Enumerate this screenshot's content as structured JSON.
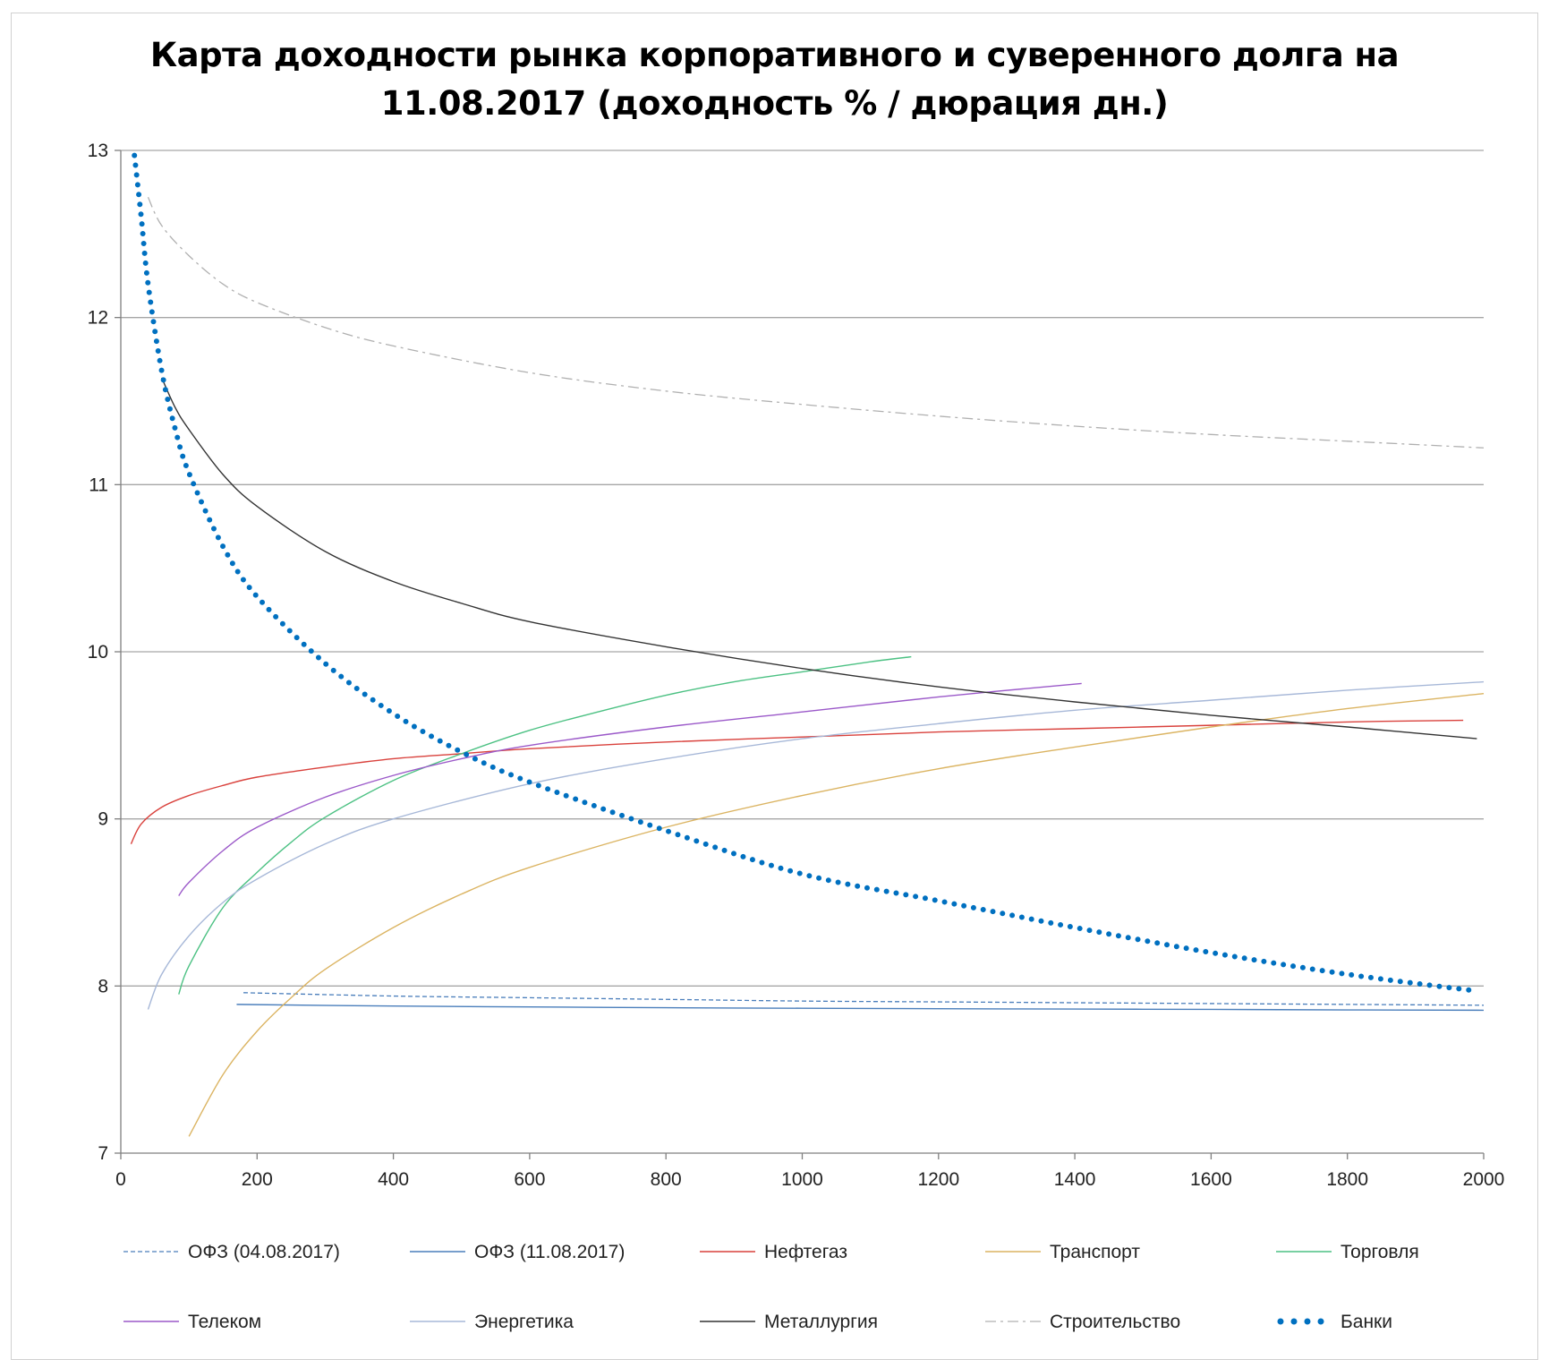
{
  "chart_data": {
    "type": "line",
    "title_lines": [
      "Карта доходности рынка корпоративного и суверенного долга на",
      "11.08.2017 (доходность % / дюрация дн.)"
    ],
    "xlabel": "",
    "ylabel": "",
    "xlim": [
      0,
      2000
    ],
    "ylim": [
      7,
      13
    ],
    "x_ticks": [
      0,
      200,
      400,
      600,
      800,
      1000,
      1200,
      1400,
      1600,
      1800,
      2000
    ],
    "y_ticks": [
      7,
      8,
      9,
      10,
      11,
      12,
      13
    ],
    "grid": "horizontal",
    "legend_position": "bottom",
    "series": [
      {
        "name": "ОФЗ (04.08.2017)",
        "color": "#4a7ebb",
        "style": "dashed",
        "x": [
          180,
          400,
          600,
          800,
          1000,
          1200,
          1400,
          1600,
          1800,
          2000
        ],
        "y": [
          7.96,
          7.94,
          7.93,
          7.92,
          7.91,
          7.905,
          7.9,
          7.895,
          7.89,
          7.885
        ]
      },
      {
        "name": "ОФЗ (11.08.2017)",
        "color": "#4a7ebb",
        "style": "solid",
        "x": [
          170,
          400,
          600,
          800,
          1000,
          1200,
          1400,
          1600,
          1800,
          2000
        ],
        "y": [
          7.89,
          7.88,
          7.875,
          7.87,
          7.867,
          7.864,
          7.862,
          7.86,
          7.857,
          7.855
        ]
      },
      {
        "name": "Нефтегаз",
        "color": "#d9413c",
        "style": "solid",
        "x": [
          15,
          30,
          60,
          100,
          150,
          200,
          300,
          400,
          500,
          600,
          800,
          1000,
          1200,
          1400,
          1600,
          1800,
          1970
        ],
        "y": [
          8.85,
          8.97,
          9.07,
          9.14,
          9.2,
          9.25,
          9.31,
          9.36,
          9.39,
          9.42,
          9.46,
          9.49,
          9.52,
          9.54,
          9.56,
          9.58,
          9.59
        ]
      },
      {
        "name": "Транспорт",
        "color": "#dbb462",
        "style": "solid",
        "x": [
          100,
          150,
          200,
          250,
          300,
          400,
          500,
          600,
          800,
          1000,
          1200,
          1400,
          1600,
          1800,
          2000
        ],
        "y": [
          7.1,
          7.47,
          7.73,
          7.93,
          8.1,
          8.35,
          8.55,
          8.71,
          8.95,
          9.14,
          9.3,
          9.43,
          9.55,
          9.66,
          9.75
        ]
      },
      {
        "name": "Торговля",
        "color": "#4cc183",
        "style": "solid",
        "x": [
          85,
          100,
          150,
          200,
          250,
          300,
          400,
          500,
          600,
          700,
          800,
          900,
          1000,
          1100,
          1160
        ],
        "y": [
          7.95,
          8.12,
          8.47,
          8.68,
          8.86,
          9.01,
          9.23,
          9.39,
          9.53,
          9.64,
          9.74,
          9.82,
          9.88,
          9.94,
          9.97
        ]
      },
      {
        "name": "Телеком",
        "color": "#9b59c9",
        "style": "solid",
        "x": [
          85,
          100,
          150,
          200,
          300,
          400,
          500,
          600,
          800,
          1000,
          1200,
          1410
        ],
        "y": [
          8.54,
          8.62,
          8.81,
          8.95,
          9.13,
          9.26,
          9.36,
          9.44,
          9.55,
          9.64,
          9.73,
          9.81
        ]
      },
      {
        "name": "Энергетика",
        "color": "#a7b8d8",
        "style": "solid",
        "x": [
          40,
          60,
          100,
          150,
          200,
          300,
          400,
          600,
          800,
          1000,
          1200,
          1400,
          1600,
          1800,
          2000
        ],
        "y": [
          7.86,
          8.07,
          8.3,
          8.5,
          8.64,
          8.85,
          9.0,
          9.21,
          9.36,
          9.48,
          9.57,
          9.65,
          9.71,
          9.77,
          9.82
        ]
      },
      {
        "name": "Металлургия",
        "color": "#333333",
        "style": "solid",
        "x": [
          60,
          80,
          100,
          150,
          200,
          300,
          400,
          500,
          600,
          800,
          1000,
          1200,
          1400,
          1600,
          1800,
          1990
        ],
        "y": [
          11.64,
          11.46,
          11.33,
          11.06,
          10.87,
          10.6,
          10.42,
          10.29,
          10.18,
          10.03,
          9.9,
          9.79,
          9.7,
          9.62,
          9.55,
          9.48
        ]
      },
      {
        "name": "Строительство",
        "color": "#b0b0b0",
        "style": "dashdot",
        "x": [
          40,
          60,
          100,
          150,
          200,
          300,
          400,
          600,
          800,
          1000,
          1200,
          1400,
          1600,
          1800,
          2000
        ],
        "y": [
          12.72,
          12.55,
          12.37,
          12.2,
          12.09,
          11.94,
          11.83,
          11.67,
          11.56,
          11.48,
          11.41,
          11.35,
          11.3,
          11.26,
          11.22
        ]
      },
      {
        "name": "Банки",
        "color": "#0070c0",
        "style": "dotted",
        "x": [
          20,
          30,
          40,
          60,
          80,
          100,
          150,
          200,
          300,
          400,
          500,
          600,
          800,
          1000,
          1200,
          1400,
          1600,
          1800,
          1990
        ],
        "y": [
          12.97,
          12.6,
          12.2,
          11.68,
          11.33,
          11.07,
          10.63,
          10.33,
          9.93,
          9.63,
          9.4,
          9.22,
          8.93,
          8.67,
          8.51,
          8.35,
          8.2,
          8.07,
          7.97
        ]
      }
    ]
  }
}
